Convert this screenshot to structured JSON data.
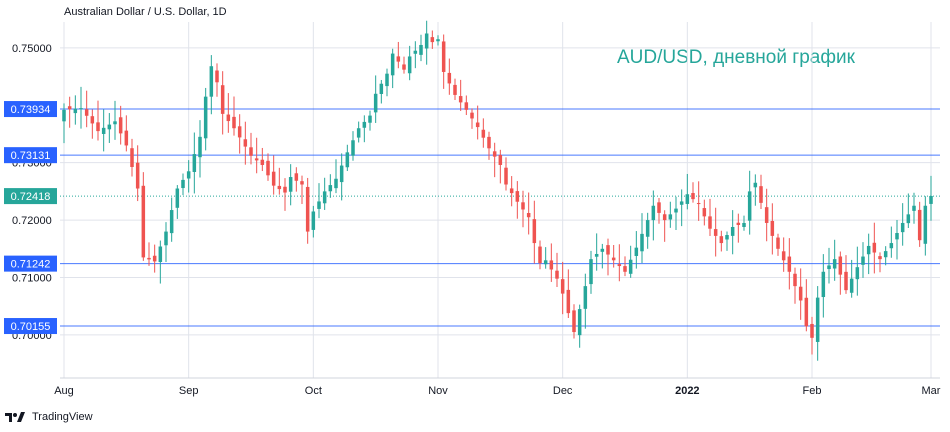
{
  "header": {
    "instrument": "Australian Dollar / U.S. Dollar, 1D",
    "annotation": "AUD/USD, дневной график"
  },
  "footer": {
    "brand": "TradingView"
  },
  "colors": {
    "up": "#26a69a",
    "down": "#ef5350",
    "level_line": "#2962ff",
    "level_badge_bg": "#2962ff",
    "annotation": "#26a69a",
    "price_line": "#26a69a",
    "grid": "#e0e3eb",
    "axis_text": "#131722"
  },
  "chart_data": {
    "type": "candlestick",
    "title": "Australian Dollar / U.S. Dollar, 1D",
    "y_ticks": [
      "0.75000",
      "0.73000",
      "0.72000",
      "0.71000",
      "0.70000"
    ],
    "y_tick_values": [
      0.75,
      0.73,
      0.72,
      0.71,
      0.7
    ],
    "ylim": [
      0.6925,
      0.7545
    ],
    "x_ticks": [
      {
        "label": "Aug",
        "index": 0
      },
      {
        "label": "Sep",
        "index": 22
      },
      {
        "label": "Oct",
        "index": 44
      },
      {
        "label": "Nov",
        "index": 66
      },
      {
        "label": "Dec",
        "index": 88
      },
      {
        "label": "2022",
        "index": 110
      },
      {
        "label": "Feb",
        "index": 132
      },
      {
        "label": "Mar",
        "index": 153
      }
    ],
    "horizontal_levels": [
      {
        "value": 0.73934,
        "label": "0.73934"
      },
      {
        "value": 0.73131,
        "label": "0.73131"
      },
      {
        "value": 0.71242,
        "label": "0.71242"
      },
      {
        "value": 0.70155,
        "label": "0.70155"
      }
    ],
    "last_price": {
      "value": 0.72418,
      "label": "0.72418"
    },
    "close_path": [
      [
        0,
        0.7392
      ],
      [
        3,
        0.7395
      ],
      [
        6,
        0.7355
      ],
      [
        9,
        0.7372
      ],
      [
        11,
        0.733
      ],
      [
        13,
        0.7255
      ],
      [
        14,
        0.7135
      ],
      [
        16,
        0.7128
      ],
      [
        18,
        0.718
      ],
      [
        20,
        0.7255
      ],
      [
        22,
        0.7285
      ],
      [
        24,
        0.7345
      ],
      [
        25,
        0.7415
      ],
      [
        26,
        0.7468
      ],
      [
        27,
        0.744
      ],
      [
        28,
        0.7385
      ],
      [
        30,
        0.736
      ],
      [
        33,
        0.7312
      ],
      [
        35,
        0.7296
      ],
      [
        37,
        0.726
      ],
      [
        39,
        0.7248
      ],
      [
        40,
        0.7275
      ],
      [
        42,
        0.7262
      ],
      [
        43,
        0.718
      ],
      [
        44,
        0.7215
      ],
      [
        46,
        0.725
      ],
      [
        48,
        0.7272
      ],
      [
        50,
        0.7318
      ],
      [
        52,
        0.736
      ],
      [
        54,
        0.7382
      ],
      [
        55,
        0.742
      ],
      [
        57,
        0.7455
      ],
      [
        58,
        0.749
      ],
      [
        60,
        0.7462
      ],
      [
        61,
        0.7485
      ],
      [
        63,
        0.7505
      ],
      [
        64,
        0.7525
      ],
      [
        65,
        0.751
      ],
      [
        66,
        0.7515
      ],
      [
        67,
        0.7458
      ],
      [
        69,
        0.7418
      ],
      [
        71,
        0.7392
      ],
      [
        73,
        0.7362
      ],
      [
        75,
        0.7325
      ],
      [
        77,
        0.7296
      ],
      [
        78,
        0.7262
      ],
      [
        80,
        0.7232
      ],
      [
        82,
        0.7205
      ],
      [
        83,
        0.716
      ],
      [
        84,
        0.7125
      ],
      [
        85,
        0.713
      ],
      [
        87,
        0.7098
      ],
      [
        88,
        0.7072
      ],
      [
        89,
        0.7038
      ],
      [
        90,
        0.7005
      ],
      [
        92,
        0.7085
      ],
      [
        93,
        0.7132
      ],
      [
        95,
        0.715
      ],
      [
        97,
        0.713
      ],
      [
        99,
        0.711
      ],
      [
        101,
        0.7152
      ],
      [
        103,
        0.72
      ],
      [
        104,
        0.7225
      ],
      [
        106,
        0.72
      ],
      [
        108,
        0.722
      ],
      [
        110,
        0.7245
      ],
      [
        112,
        0.7228
      ],
      [
        114,
        0.7185
      ],
      [
        116,
        0.716
      ],
      [
        118,
        0.7188
      ],
      [
        120,
        0.7195
      ],
      [
        121,
        0.725
      ],
      [
        122,
        0.7265
      ],
      [
        124,
        0.7195
      ],
      [
        126,
        0.715
      ],
      [
        128,
        0.711
      ],
      [
        130,
        0.706
      ],
      [
        131,
        0.7015
      ],
      [
        132,
        0.6995
      ],
      [
        133,
        0.7065
      ],
      [
        134,
        0.711
      ],
      [
        136,
        0.7132
      ],
      [
        138,
        0.7078
      ],
      [
        140,
        0.7118
      ],
      [
        142,
        0.7155
      ],
      [
        144,
        0.7132
      ],
      [
        146,
        0.716
      ],
      [
        148,
        0.7195
      ],
      [
        150,
        0.7225
      ],
      [
        151,
        0.7165
      ],
      [
        152,
        0.7225
      ],
      [
        153,
        0.7242
      ]
    ]
  }
}
